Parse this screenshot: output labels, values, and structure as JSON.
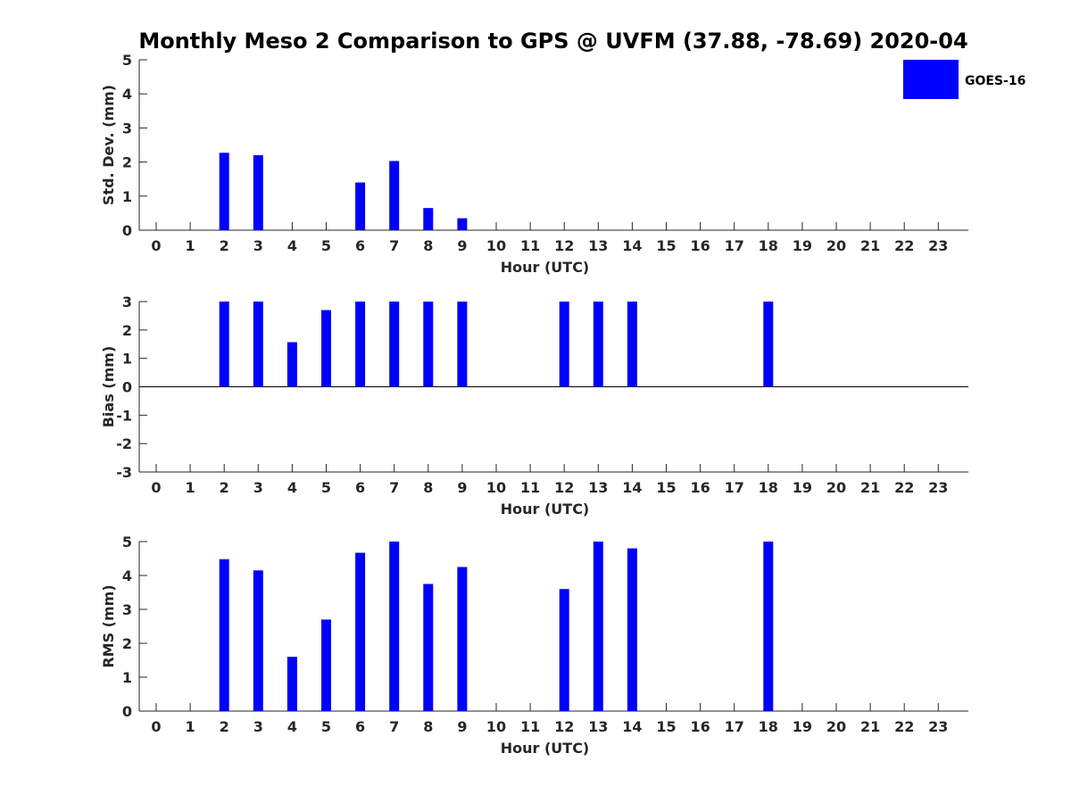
{
  "chart_data": {
    "title": "Monthly Meso 2 Comparison to GPS @ UVFM (37.88, -78.69) 2020-04",
    "legend": {
      "label": "GOES-16",
      "color": "#0000FF",
      "placement": "top-right"
    },
    "bar_color": "#0000FF",
    "categories": [
      "0",
      "1",
      "2",
      "3",
      "4",
      "5",
      "6",
      "7",
      "8",
      "9",
      "10",
      "11",
      "12",
      "13",
      "14",
      "15",
      "16",
      "17",
      "18",
      "19",
      "20",
      "21",
      "22",
      "23"
    ],
    "charts": [
      {
        "type": "bar",
        "xlabel": "Hour (UTC)",
        "ylabel": "Std. Dev. (mm)",
        "ylim": [
          0,
          5
        ],
        "yticks": [
          "0",
          "1",
          "2",
          "3",
          "4",
          "5"
        ],
        "values": [
          null,
          null,
          2.27,
          2.2,
          null,
          null,
          1.4,
          2.03,
          0.65,
          0.35,
          null,
          null,
          null,
          null,
          null,
          null,
          null,
          null,
          null,
          null,
          null,
          null,
          null,
          null
        ]
      },
      {
        "type": "bar",
        "xlabel": "Hour (UTC)",
        "ylabel": "Bias (mm)",
        "ylim": [
          -3,
          3
        ],
        "yticks": [
          "-3",
          "-2",
          "-1",
          "0",
          "1",
          "2",
          "3"
        ],
        "zero_line": true,
        "values": [
          null,
          null,
          3,
          3,
          1.57,
          2.7,
          3,
          3,
          3,
          3,
          null,
          null,
          3,
          3,
          3,
          null,
          null,
          null,
          3,
          null,
          null,
          null,
          null,
          null
        ]
      },
      {
        "type": "bar",
        "xlabel": "Hour (UTC)",
        "ylabel": "RMS (mm)",
        "ylim": [
          0,
          5
        ],
        "yticks": [
          "0",
          "1",
          "2",
          "3",
          "4",
          "5"
        ],
        "values": [
          null,
          null,
          4.48,
          4.15,
          1.6,
          2.7,
          4.67,
          5,
          3.75,
          4.25,
          null,
          null,
          3.6,
          5,
          4.8,
          null,
          null,
          null,
          5,
          null,
          null,
          null,
          null,
          null
        ]
      }
    ]
  }
}
